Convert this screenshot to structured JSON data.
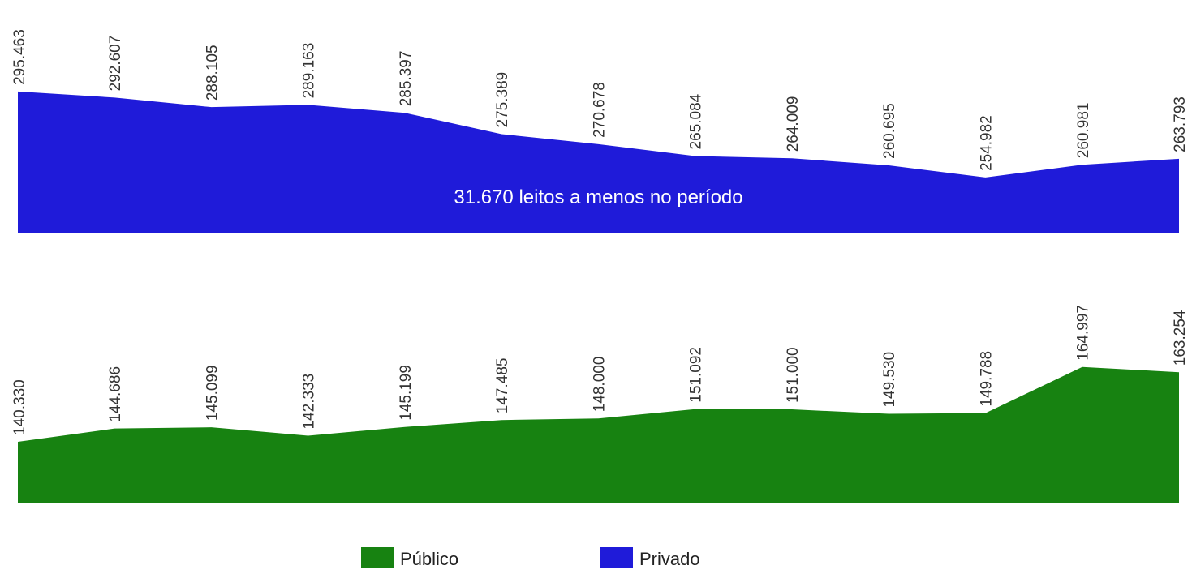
{
  "chart_data": [
    {
      "type": "area",
      "annotation": "31.670 leitos a menos no período",
      "ylim": [
        229000,
        300000
      ],
      "series": [
        {
          "name": "Privado",
          "color": "#1f1bd9",
          "values": [
            295463,
            292607,
            288105,
            289163,
            285397,
            275389,
            270678,
            265084,
            264009,
            260695,
            254982,
            260981,
            263793
          ],
          "value_labels": [
            "295.463",
            "292.607",
            "288.105",
            "289.163",
            "285.397",
            "275.389",
            "270.678",
            "265.084",
            "264.009",
            "260.695",
            "254.982",
            "260.981",
            "263.793"
          ]
        }
      ]
    },
    {
      "type": "area",
      "ylim": [
        120000,
        170000
      ],
      "legend": "bottom",
      "series": [
        {
          "name": "Público",
          "color": "#178211",
          "values": [
            140330,
            144686,
            145099,
            142333,
            145199,
            147485,
            148000,
            151092,
            151000,
            149530,
            149788,
            164997,
            163254
          ],
          "value_labels": [
            "140.330",
            "144.686",
            "145.099",
            "142.333",
            "145.199",
            "147.485",
            "148.000",
            "151.092",
            "151.000",
            "149.530",
            "149.788",
            "164.997",
            "163.254"
          ]
        }
      ]
    }
  ]
}
